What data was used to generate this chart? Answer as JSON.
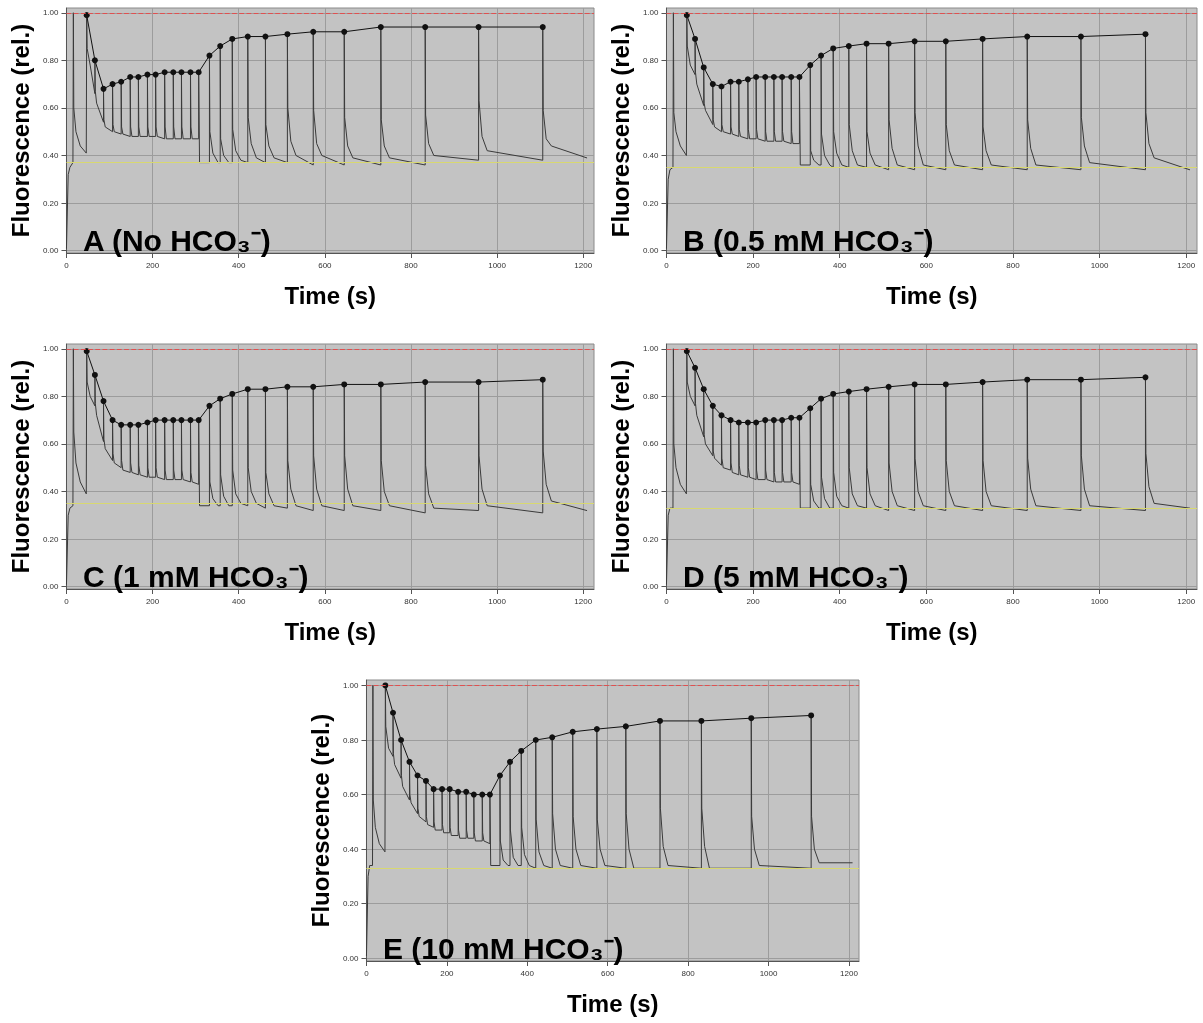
{
  "chart_data": [
    {
      "type": "line",
      "title": "A (No HCO₃⁻)",
      "xlabel": "Time (s)",
      "ylabel": "Fluorescence (rel.)",
      "xlim": [
        0,
        1225
      ],
      "ylim": [
        -0.01,
        1.02
      ],
      "xticks": [
        0,
        200,
        400,
        600,
        800,
        1000,
        1200
      ],
      "yticks": [
        {
          "value": 0,
          "label": "0.00"
        },
        {
          "value": 0.2,
          "label": "0.20"
        },
        {
          "value": 0.4,
          "label": "0.40"
        },
        {
          "value": 0.6,
          "label": "0.60"
        },
        {
          "value": 0.8,
          "label": "0.80"
        },
        {
          "value": 1,
          "label": "1.00"
        }
      ],
      "grid": true,
      "x": [
        0,
        4,
        8,
        15,
        16,
        16,
        17,
        22,
        32,
        46,
        47,
        47,
        48,
        55,
        66,
        66,
        67,
        70,
        86,
        86,
        87,
        90,
        107,
        107,
        108,
        111,
        127,
        127,
        128,
        131,
        148,
        148,
        149,
        152,
        167,
        167,
        168,
        171,
        188,
        188,
        189,
        192,
        207,
        207,
        208,
        211,
        228,
        228,
        229,
        232,
        248,
        248,
        249,
        252,
        267,
        267,
        268,
        271,
        288,
        288,
        289,
        292,
        307,
        307,
        309,
        332,
        332,
        333,
        340,
        352,
        357,
        357,
        358,
        365,
        377,
        385,
        385,
        386,
        393,
        405,
        421,
        421,
        422,
        429,
        441,
        462,
        462,
        463,
        470,
        482,
        513,
        513,
        514,
        521,
        533,
        573,
        573,
        574,
        581,
        593,
        645,
        645,
        646,
        653,
        665,
        730,
        730,
        731,
        738,
        750,
        833,
        833,
        834,
        841,
        853,
        957,
        957,
        958,
        965,
        977,
        1106,
        1106,
        1107,
        1114,
        1126,
        1208
      ],
      "series": [
        {
          "color": "#3a3a3a",
          "marker": "none",
          "values": [
            0.01,
            0.32,
            0.35,
            0.37,
            0.37,
            1.0,
            0.6,
            0.5,
            0.44,
            0.41,
            0.41,
            0.99,
            0.85,
            0.78,
            0.66,
            0.8,
            0.67,
            0.62,
            0.54,
            0.68,
            0.55,
            0.52,
            0.5,
            0.7,
            0.53,
            0.5,
            0.49,
            0.71,
            0.52,
            0.49,
            0.48,
            0.73,
            0.52,
            0.48,
            0.48,
            0.73,
            0.52,
            0.48,
            0.48,
            0.74,
            0.52,
            0.48,
            0.48,
            0.74,
            0.52,
            0.48,
            0.47,
            0.75,
            0.52,
            0.47,
            0.47,
            0.75,
            0.52,
            0.47,
            0.47,
            0.75,
            0.52,
            0.47,
            0.47,
            0.75,
            0.52,
            0.47,
            0.47,
            0.75,
            0.37,
            0.37,
            0.82,
            0.5,
            0.41,
            0.37,
            0.37,
            0.86,
            0.47,
            0.4,
            0.37,
            0.37,
            0.89,
            0.51,
            0.42,
            0.38,
            0.37,
            0.9,
            0.56,
            0.45,
            0.39,
            0.37,
            0.9,
            0.53,
            0.44,
            0.39,
            0.37,
            0.91,
            0.6,
            0.46,
            0.4,
            0.36,
            0.92,
            0.59,
            0.45,
            0.4,
            0.36,
            0.92,
            0.56,
            0.44,
            0.39,
            0.36,
            0.94,
            0.55,
            0.44,
            0.39,
            0.36,
            0.94,
            0.57,
            0.45,
            0.4,
            0.38,
            0.94,
            0.63,
            0.48,
            0.42,
            0.38,
            0.94,
            0.59,
            0.47,
            0.44,
            0.39
          ]
        },
        {
          "color": "#111111",
          "marker": "circle",
          "x": [
            47,
            66,
            86,
            107,
            127,
            148,
            167,
            188,
            207,
            228,
            248,
            267,
            288,
            307,
            332,
            357,
            385,
            421,
            462,
            513,
            573,
            645,
            730,
            833,
            957,
            1106
          ],
          "values": [
            0.99,
            0.8,
            0.68,
            0.7,
            0.71,
            0.73,
            0.73,
            0.74,
            0.74,
            0.75,
            0.75,
            0.75,
            0.75,
            0.75,
            0.82,
            0.86,
            0.89,
            0.9,
            0.9,
            0.91,
            0.92,
            0.92,
            0.94,
            0.94,
            0.94,
            0.94
          ]
        }
      ],
      "ref_lines": [
        {
          "axis": "y",
          "value": 1.0,
          "color": "#e05050",
          "line_style": "dashed"
        },
        {
          "axis": "y",
          "value": 0.37,
          "color": "#d8d870",
          "line_style": "solid"
        }
      ]
    },
    {
      "type": "line",
      "title": "B (0.5 mM HCO₃⁻)",
      "xlabel": "Time (s)",
      "ylabel": "Fluorescence (rel.)",
      "xlim": [
        0,
        1225
      ],
      "ylim": [
        -0.01,
        1.02
      ],
      "xticks": [
        0,
        200,
        400,
        600,
        800,
        1000,
        1200
      ],
      "yticks": [
        {
          "value": 0,
          "label": "0.00"
        },
        {
          "value": 0.2,
          "label": "0.20"
        },
        {
          "value": 0.4,
          "label": "0.40"
        },
        {
          "value": 0.6,
          "label": "0.60"
        },
        {
          "value": 0.8,
          "label": "0.80"
        },
        {
          "value": 1,
          "label": "1.00"
        }
      ],
      "grid": true,
      "x": [
        0,
        4,
        8,
        15,
        16,
        16,
        17,
        22,
        32,
        46,
        47,
        47,
        48,
        55,
        66,
        66,
        67,
        70,
        86,
        86,
        87,
        90,
        107,
        107,
        108,
        111,
        127,
        127,
        128,
        131,
        148,
        148,
        149,
        152,
        167,
        167,
        168,
        171,
        188,
        188,
        189,
        192,
        207,
        207,
        208,
        211,
        228,
        228,
        229,
        232,
        248,
        248,
        249,
        252,
        267,
        267,
        268,
        271,
        288,
        288,
        289,
        292,
        307,
        307,
        309,
        332,
        332,
        333,
        340,
        352,
        357,
        357,
        358,
        365,
        377,
        385,
        385,
        386,
        393,
        405,
        421,
        421,
        422,
        429,
        441,
        462,
        462,
        463,
        470,
        482,
        513,
        513,
        514,
        521,
        533,
        573,
        573,
        574,
        581,
        593,
        645,
        645,
        646,
        653,
        665,
        730,
        730,
        731,
        738,
        750,
        833,
        833,
        834,
        841,
        853,
        957,
        957,
        958,
        965,
        977,
        1106,
        1106,
        1107,
        1114,
        1126,
        1208
      ],
      "series": [
        {
          "color": "#3a3a3a",
          "marker": "none",
          "values": [
            0.01,
            0.3,
            0.34,
            0.35,
            0.35,
            1.0,
            0.58,
            0.5,
            0.44,
            0.4,
            0.4,
            0.99,
            0.86,
            0.78,
            0.74,
            0.89,
            0.75,
            0.7,
            0.61,
            0.77,
            0.62,
            0.59,
            0.53,
            0.7,
            0.55,
            0.52,
            0.5,
            0.69,
            0.53,
            0.5,
            0.49,
            0.71,
            0.52,
            0.49,
            0.48,
            0.71,
            0.51,
            0.48,
            0.47,
            0.72,
            0.51,
            0.47,
            0.47,
            0.73,
            0.51,
            0.47,
            0.46,
            0.73,
            0.5,
            0.46,
            0.46,
            0.73,
            0.5,
            0.46,
            0.46,
            0.73,
            0.5,
            0.46,
            0.45,
            0.73,
            0.5,
            0.45,
            0.45,
            0.73,
            0.36,
            0.36,
            0.78,
            0.42,
            0.38,
            0.36,
            0.36,
            0.82,
            0.49,
            0.4,
            0.36,
            0.35,
            0.85,
            0.5,
            0.41,
            0.36,
            0.35,
            0.86,
            0.53,
            0.42,
            0.36,
            0.35,
            0.87,
            0.5,
            0.41,
            0.36,
            0.34,
            0.87,
            0.55,
            0.43,
            0.36,
            0.34,
            0.88,
            0.58,
            0.44,
            0.36,
            0.34,
            0.88,
            0.53,
            0.42,
            0.36,
            0.34,
            0.89,
            0.52,
            0.42,
            0.36,
            0.34,
            0.9,
            0.55,
            0.43,
            0.36,
            0.34,
            0.9,
            0.56,
            0.44,
            0.37,
            0.34,
            0.91,
            0.58,
            0.45,
            0.39,
            0.34
          ]
        },
        {
          "color": "#111111",
          "marker": "circle",
          "x": [
            47,
            66,
            86,
            107,
            127,
            148,
            167,
            188,
            207,
            228,
            248,
            267,
            288,
            307,
            332,
            357,
            385,
            421,
            462,
            513,
            573,
            645,
            730,
            833,
            957,
            1106
          ],
          "values": [
            0.99,
            0.89,
            0.77,
            0.7,
            0.69,
            0.71,
            0.71,
            0.72,
            0.73,
            0.73,
            0.73,
            0.73,
            0.73,
            0.73,
            0.78,
            0.82,
            0.85,
            0.86,
            0.87,
            0.87,
            0.88,
            0.88,
            0.89,
            0.9,
            0.9,
            0.91
          ]
        }
      ],
      "ref_lines": [
        {
          "axis": "y",
          "value": 1.0,
          "color": "#e05050",
          "line_style": "dashed"
        },
        {
          "axis": "y",
          "value": 0.35,
          "color": "#d8d870",
          "line_style": "solid"
        }
      ]
    },
    {
      "type": "line",
      "title": "C (1 mM HCO₃⁻)",
      "xlabel": "Time (s)",
      "ylabel": "Fluorescence (rel.)",
      "xlim": [
        0,
        1225
      ],
      "ylim": [
        -0.01,
        1.02
      ],
      "xticks": [
        0,
        200,
        400,
        600,
        800,
        1000,
        1200
      ],
      "yticks": [
        {
          "value": 0,
          "label": "0.00"
        },
        {
          "value": 0.2,
          "label": "0.20"
        },
        {
          "value": 0.4,
          "label": "0.40"
        },
        {
          "value": 0.6,
          "label": "0.60"
        },
        {
          "value": 0.8,
          "label": "0.80"
        },
        {
          "value": 1,
          "label": "1.00"
        }
      ],
      "grid": true,
      "x": [
        0,
        4,
        8,
        15,
        16,
        16,
        17,
        22,
        32,
        46,
        47,
        47,
        48,
        55,
        66,
        66,
        67,
        70,
        86,
        86,
        87,
        90,
        107,
        107,
        108,
        111,
        127,
        127,
        128,
        131,
        148,
        148,
        149,
        152,
        167,
        167,
        168,
        171,
        188,
        188,
        189,
        192,
        207,
        207,
        208,
        211,
        228,
        228,
        229,
        232,
        248,
        248,
        249,
        252,
        267,
        267,
        268,
        271,
        288,
        288,
        289,
        292,
        307,
        307,
        309,
        332,
        332,
        333,
        340,
        352,
        357,
        357,
        358,
        365,
        377,
        385,
        385,
        386,
        393,
        405,
        421,
        421,
        422,
        429,
        441,
        462,
        462,
        463,
        470,
        482,
        513,
        513,
        514,
        521,
        533,
        573,
        573,
        574,
        581,
        593,
        645,
        645,
        646,
        653,
        665,
        730,
        730,
        731,
        738,
        750,
        833,
        833,
        834,
        841,
        853,
        957,
        957,
        958,
        965,
        977,
        1106,
        1106,
        1107,
        1114,
        1126,
        1208
      ],
      "series": [
        {
          "color": "#3a3a3a",
          "marker": "none",
          "values": [
            0.01,
            0.3,
            0.33,
            0.34,
            0.34,
            1.0,
            0.65,
            0.52,
            0.44,
            0.39,
            0.39,
            0.99,
            0.86,
            0.8,
            0.76,
            0.89,
            0.77,
            0.72,
            0.61,
            0.78,
            0.62,
            0.58,
            0.53,
            0.7,
            0.56,
            0.52,
            0.5,
            0.68,
            0.53,
            0.49,
            0.48,
            0.68,
            0.52,
            0.48,
            0.47,
            0.68,
            0.51,
            0.47,
            0.46,
            0.69,
            0.5,
            0.46,
            0.46,
            0.7,
            0.5,
            0.46,
            0.45,
            0.7,
            0.49,
            0.45,
            0.45,
            0.7,
            0.49,
            0.45,
            0.45,
            0.7,
            0.49,
            0.45,
            0.44,
            0.7,
            0.48,
            0.44,
            0.43,
            0.7,
            0.34,
            0.34,
            0.76,
            0.44,
            0.37,
            0.34,
            0.34,
            0.79,
            0.47,
            0.38,
            0.34,
            0.34,
            0.81,
            0.49,
            0.39,
            0.35,
            0.34,
            0.83,
            0.5,
            0.4,
            0.35,
            0.33,
            0.83,
            0.48,
            0.39,
            0.34,
            0.33,
            0.84,
            0.53,
            0.41,
            0.34,
            0.32,
            0.84,
            0.55,
            0.41,
            0.34,
            0.32,
            0.85,
            0.55,
            0.41,
            0.34,
            0.32,
            0.85,
            0.53,
            0.4,
            0.34,
            0.31,
            0.86,
            0.51,
            0.39,
            0.33,
            0.32,
            0.86,
            0.55,
            0.41,
            0.34,
            0.31,
            0.87,
            0.57,
            0.43,
            0.36,
            0.32
          ]
        },
        {
          "color": "#111111",
          "marker": "circle",
          "x": [
            47,
            66,
            86,
            107,
            127,
            148,
            167,
            188,
            207,
            228,
            248,
            267,
            288,
            307,
            332,
            357,
            385,
            421,
            462,
            513,
            573,
            645,
            730,
            833,
            957,
            1106
          ],
          "values": [
            0.99,
            0.89,
            0.78,
            0.7,
            0.68,
            0.68,
            0.68,
            0.69,
            0.7,
            0.7,
            0.7,
            0.7,
            0.7,
            0.7,
            0.76,
            0.79,
            0.81,
            0.83,
            0.83,
            0.84,
            0.84,
            0.85,
            0.85,
            0.86,
            0.86,
            0.87
          ]
        }
      ],
      "ref_lines": [
        {
          "axis": "y",
          "value": 1.0,
          "color": "#e05050",
          "line_style": "dashed"
        },
        {
          "axis": "y",
          "value": 0.35,
          "color": "#d8d870",
          "line_style": "solid"
        }
      ]
    },
    {
      "type": "line",
      "title": "D (5 mM HCO₃⁻)",
      "xlabel": "Time (s)",
      "ylabel": "Fluorescence (rel.)",
      "xlim": [
        0,
        1225
      ],
      "ylim": [
        -0.01,
        1.02
      ],
      "xticks": [
        0,
        200,
        400,
        600,
        800,
        1000,
        1200
      ],
      "yticks": [
        {
          "value": 0,
          "label": "0.00"
        },
        {
          "value": 0.2,
          "label": "0.20"
        },
        {
          "value": 0.4,
          "label": "0.40"
        },
        {
          "value": 0.6,
          "label": "0.60"
        },
        {
          "value": 0.8,
          "label": "0.80"
        },
        {
          "value": 1,
          "label": "1.00"
        }
      ],
      "grid": true,
      "x": [
        0,
        4,
        8,
        15,
        16,
        16,
        17,
        22,
        32,
        46,
        47,
        47,
        48,
        55,
        66,
        66,
        67,
        70,
        86,
        86,
        87,
        90,
        107,
        107,
        108,
        111,
        127,
        127,
        128,
        131,
        148,
        148,
        149,
        152,
        167,
        167,
        168,
        171,
        188,
        188,
        189,
        192,
        207,
        207,
        208,
        211,
        228,
        228,
        229,
        232,
        248,
        248,
        249,
        252,
        267,
        267,
        268,
        271,
        288,
        288,
        289,
        292,
        307,
        307,
        309,
        332,
        332,
        333,
        340,
        352,
        357,
        357,
        358,
        365,
        377,
        385,
        385,
        386,
        393,
        405,
        421,
        421,
        422,
        429,
        441,
        462,
        462,
        463,
        470,
        482,
        513,
        513,
        514,
        521,
        533,
        573,
        573,
        574,
        581,
        593,
        645,
        645,
        646,
        653,
        665,
        730,
        730,
        731,
        738,
        750,
        833,
        833,
        834,
        841,
        853,
        957,
        957,
        958,
        965,
        977,
        1106,
        1106,
        1107,
        1114,
        1126,
        1208
      ],
      "series": [
        {
          "color": "#3a3a3a",
          "marker": "none",
          "values": [
            0.01,
            0.3,
            0.33,
            0.33,
            0.33,
            1.0,
            0.6,
            0.5,
            0.43,
            0.39,
            0.39,
            0.99,
            0.86,
            0.8,
            0.76,
            0.92,
            0.77,
            0.72,
            0.63,
            0.83,
            0.64,
            0.6,
            0.55,
            0.76,
            0.57,
            0.54,
            0.51,
            0.72,
            0.54,
            0.5,
            0.49,
            0.7,
            0.52,
            0.48,
            0.47,
            0.69,
            0.51,
            0.47,
            0.46,
            0.69,
            0.5,
            0.46,
            0.45,
            0.69,
            0.49,
            0.45,
            0.45,
            0.7,
            0.49,
            0.45,
            0.44,
            0.7,
            0.48,
            0.44,
            0.44,
            0.7,
            0.48,
            0.44,
            0.44,
            0.71,
            0.48,
            0.44,
            0.43,
            0.71,
            0.33,
            0.33,
            0.75,
            0.43,
            0.36,
            0.33,
            0.33,
            0.79,
            0.46,
            0.37,
            0.33,
            0.33,
            0.81,
            0.48,
            0.38,
            0.34,
            0.33,
            0.82,
            0.5,
            0.39,
            0.34,
            0.33,
            0.83,
            0.5,
            0.39,
            0.34,
            0.32,
            0.84,
            0.52,
            0.4,
            0.34,
            0.32,
            0.85,
            0.54,
            0.4,
            0.34,
            0.32,
            0.85,
            0.53,
            0.4,
            0.34,
            0.32,
            0.86,
            0.53,
            0.4,
            0.34,
            0.32,
            0.87,
            0.54,
            0.41,
            0.34,
            0.32,
            0.87,
            0.55,
            0.41,
            0.34,
            0.32,
            0.88,
            0.56,
            0.42,
            0.35,
            0.33
          ]
        },
        {
          "color": "#111111",
          "marker": "circle",
          "x": [
            47,
            66,
            86,
            107,
            127,
            148,
            167,
            188,
            207,
            228,
            248,
            267,
            288,
            307,
            332,
            357,
            385,
            421,
            462,
            513,
            573,
            645,
            730,
            833,
            957,
            1106
          ],
          "values": [
            0.99,
            0.92,
            0.83,
            0.76,
            0.72,
            0.7,
            0.69,
            0.69,
            0.69,
            0.7,
            0.7,
            0.7,
            0.71,
            0.71,
            0.75,
            0.79,
            0.81,
            0.82,
            0.83,
            0.84,
            0.85,
            0.85,
            0.86,
            0.87,
            0.87,
            0.88
          ]
        }
      ],
      "ref_lines": [
        {
          "axis": "y",
          "value": 1.0,
          "color": "#e05050",
          "line_style": "dashed"
        },
        {
          "axis": "y",
          "value": 0.33,
          "color": "#d8d870",
          "line_style": "solid"
        }
      ]
    },
    {
      "type": "line",
      "title": "E (10 mM HCO₃⁻)",
      "xlabel": "Time (s)",
      "ylabel": "Fluorescence (rel.)",
      "xlim": [
        0,
        1225
      ],
      "ylim": [
        -0.01,
        1.02
      ],
      "xticks": [
        0,
        200,
        400,
        600,
        800,
        1000,
        1200
      ],
      "yticks": [
        {
          "value": 0,
          "label": "0.00"
        },
        {
          "value": 0.2,
          "label": "0.20"
        },
        {
          "value": 0.4,
          "label": "0.40"
        },
        {
          "value": 0.6,
          "label": "0.60"
        },
        {
          "value": 0.8,
          "label": "0.80"
        },
        {
          "value": 1,
          "label": "1.00"
        }
      ],
      "grid": true,
      "x": [
        0,
        4,
        8,
        15,
        16,
        16,
        17,
        22,
        32,
        46,
        47,
        47,
        48,
        55,
        66,
        66,
        67,
        70,
        86,
        86,
        87,
        90,
        107,
        107,
        108,
        111,
        127,
        127,
        128,
        131,
        148,
        148,
        149,
        152,
        167,
        167,
        168,
        171,
        188,
        188,
        189,
        192,
        207,
        207,
        208,
        211,
        228,
        228,
        229,
        232,
        248,
        248,
        249,
        252,
        267,
        267,
        268,
        271,
        288,
        288,
        289,
        292,
        307,
        307,
        309,
        332,
        332,
        333,
        340,
        352,
        357,
        357,
        358,
        365,
        377,
        385,
        385,
        386,
        393,
        405,
        421,
        421,
        422,
        429,
        441,
        462,
        462,
        463,
        470,
        482,
        513,
        513,
        514,
        521,
        533,
        573,
        573,
        574,
        581,
        593,
        645,
        645,
        646,
        653,
        665,
        730,
        730,
        731,
        738,
        750,
        833,
        833,
        834,
        841,
        853,
        957,
        957,
        958,
        965,
        977,
        1106,
        1106,
        1107,
        1114,
        1126,
        1208
      ],
      "series": [
        {
          "color": "#3a3a3a",
          "marker": "none",
          "values": [
            0.01,
            0.3,
            0.34,
            0.34,
            0.34,
            1.0,
            0.58,
            0.48,
            0.42,
            0.39,
            0.39,
            1.0,
            0.85,
            0.77,
            0.74,
            0.9,
            0.75,
            0.71,
            0.66,
            0.8,
            0.67,
            0.63,
            0.58,
            0.72,
            0.6,
            0.57,
            0.53,
            0.67,
            0.55,
            0.52,
            0.5,
            0.65,
            0.52,
            0.49,
            0.48,
            0.62,
            0.5,
            0.47,
            0.47,
            0.62,
            0.49,
            0.46,
            0.46,
            0.62,
            0.48,
            0.45,
            0.45,
            0.61,
            0.47,
            0.44,
            0.44,
            0.61,
            0.47,
            0.44,
            0.44,
            0.6,
            0.46,
            0.43,
            0.43,
            0.6,
            0.46,
            0.43,
            0.42,
            0.6,
            0.34,
            0.34,
            0.67,
            0.43,
            0.36,
            0.34,
            0.34,
            0.72,
            0.47,
            0.37,
            0.34,
            0.34,
            0.76,
            0.48,
            0.38,
            0.34,
            0.33,
            0.8,
            0.51,
            0.39,
            0.34,
            0.33,
            0.81,
            0.53,
            0.4,
            0.34,
            0.33,
            0.83,
            0.52,
            0.4,
            0.34,
            0.33,
            0.84,
            0.51,
            0.4,
            0.34,
            0.33,
            0.85,
            0.53,
            0.4,
            0.33,
            0.33,
            0.87,
            0.55,
            0.41,
            0.34,
            0.33,
            0.87,
            0.55,
            0.41,
            0.33,
            0.33,
            0.88,
            0.52,
            0.4,
            0.34,
            0.33,
            0.89,
            0.52,
            0.4,
            0.35,
            0.35
          ]
        },
        {
          "color": "#111111",
          "marker": "circle",
          "x": [
            47,
            66,
            86,
            107,
            127,
            148,
            167,
            188,
            207,
            228,
            248,
            267,
            288,
            307,
            332,
            357,
            385,
            421,
            462,
            513,
            573,
            645,
            730,
            833,
            957,
            1106
          ],
          "values": [
            1.0,
            0.9,
            0.8,
            0.72,
            0.67,
            0.65,
            0.62,
            0.62,
            0.62,
            0.61,
            0.61,
            0.6,
            0.6,
            0.6,
            0.67,
            0.72,
            0.76,
            0.8,
            0.81,
            0.83,
            0.84,
            0.85,
            0.87,
            0.87,
            0.88,
            0.89
          ]
        }
      ],
      "ref_lines": [
        {
          "axis": "y",
          "value": 1.0,
          "color": "#e05050",
          "line_style": "dashed"
        },
        {
          "axis": "y",
          "value": 0.33,
          "color": "#d8d870",
          "line_style": "solid"
        }
      ]
    }
  ]
}
